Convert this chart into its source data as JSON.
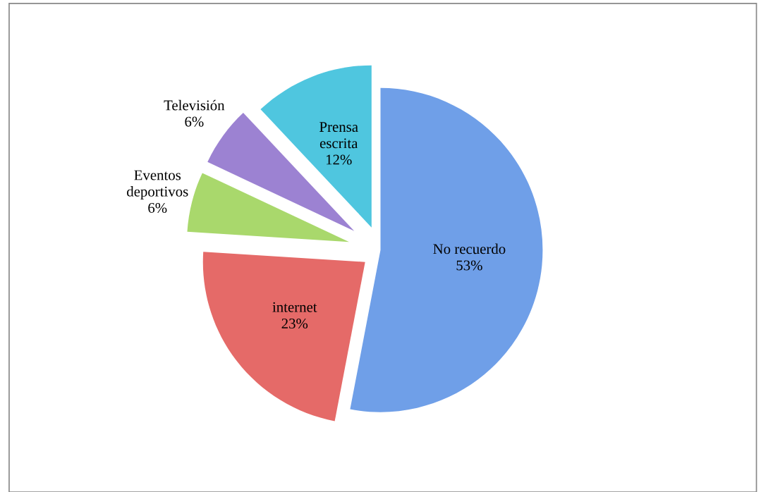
{
  "chart_data": {
    "type": "pie",
    "categories": [
      "No recuerdo",
      "internet",
      "Eventos deportivos",
      "Televisión",
      "Prensa escrita"
    ],
    "values": [
      53,
      23,
      6,
      6,
      12
    ],
    "colors": [
      "#6f9fe8",
      "#e56a68",
      "#a9d86c",
      "#9c82d2",
      "#4fc6df"
    ],
    "value_labels": [
      "53%",
      "23%",
      "6%",
      "6%",
      "12%"
    ]
  }
}
